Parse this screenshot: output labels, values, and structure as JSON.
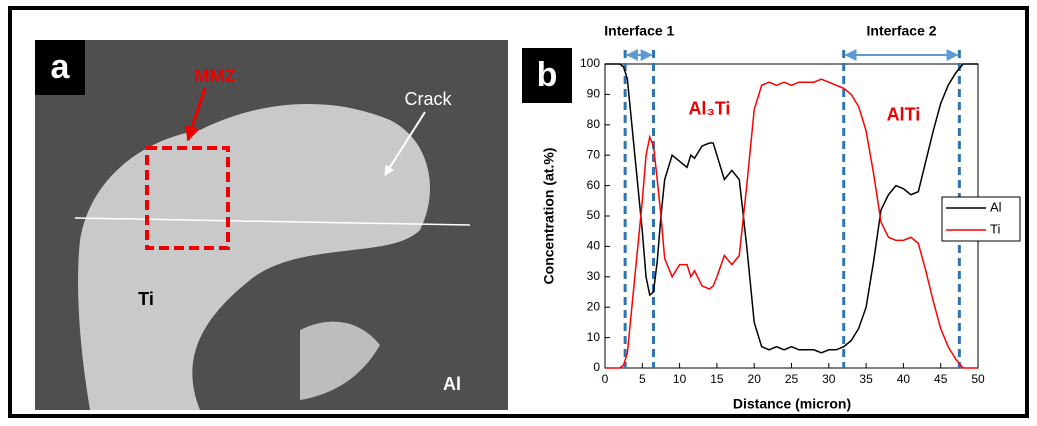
{
  "panel_a": {
    "label": "a",
    "mmz": "MMZ",
    "crack": "Crack",
    "ti": "Ti",
    "al": "Al"
  },
  "chart_data": {
    "type": "line",
    "panel_label": "b",
    "x_label": "Distance (micron)",
    "y_label": "Concentration (at.%)",
    "x": [
      0,
      1,
      2,
      2.5,
      3,
      4,
      5,
      5.5,
      6,
      6.5,
      7,
      7.5,
      8,
      9,
      10,
      11,
      11.5,
      12,
      13,
      14,
      14.5,
      15,
      16,
      17,
      18,
      19,
      20,
      21,
      22,
      23,
      24,
      25,
      26,
      27,
      28,
      29,
      30,
      31,
      32,
      33,
      34,
      35,
      36,
      37,
      38,
      39,
      40,
      41,
      42,
      43,
      44,
      45,
      46,
      47,
      48,
      49,
      50
    ],
    "series": [
      {
        "name": "Al",
        "color": "#000000",
        "values": [
          100,
          100,
          100,
          99,
          95,
          70,
          45,
          30,
          24,
          25,
          35,
          50,
          62,
          70,
          68,
          66,
          70,
          69,
          73,
          74,
          74,
          70,
          62,
          65,
          62,
          40,
          15,
          7,
          6,
          7,
          6,
          7,
          6,
          6,
          6,
          5,
          6,
          6,
          7,
          9,
          13,
          20,
          35,
          52,
          57,
          60,
          59,
          57,
          58,
          68,
          78,
          87,
          93,
          97,
          100,
          100,
          100
        ]
      },
      {
        "name": "Ti",
        "color": "#ff0000",
        "values": [
          0,
          0,
          0,
          1,
          5,
          30,
          55,
          70,
          76,
          73,
          62,
          50,
          36,
          30,
          34,
          34,
          30,
          32,
          27,
          26,
          27,
          30,
          37,
          34,
          37,
          60,
          85,
          93,
          94,
          93,
          94,
          93,
          94,
          94,
          94,
          95,
          94,
          93,
          92,
          90,
          86,
          78,
          64,
          48,
          43,
          42,
          42,
          43,
          41,
          32,
          22,
          13,
          7,
          3,
          0,
          0,
          0
        ]
      }
    ],
    "xlim": [
      0,
      50
    ],
    "ylim": [
      0,
      100
    ],
    "xticks": [
      0,
      5,
      10,
      15,
      20,
      25,
      30,
      35,
      40,
      45,
      50
    ],
    "yticks": [
      0,
      10,
      20,
      30,
      40,
      50,
      60,
      70,
      80,
      90,
      100
    ],
    "interfaces": [
      {
        "label": "Interface 1",
        "x": [
          2.7,
          6.5
        ]
      },
      {
        "label": "Interface 2",
        "x": [
          32,
          47.5
        ]
      }
    ],
    "annotations": [
      {
        "text": "Al₃Ti",
        "x": 14,
        "y": 85
      },
      {
        "text": "AlTi",
        "x": 40,
        "y": 83
      }
    ],
    "legend": "right"
  }
}
